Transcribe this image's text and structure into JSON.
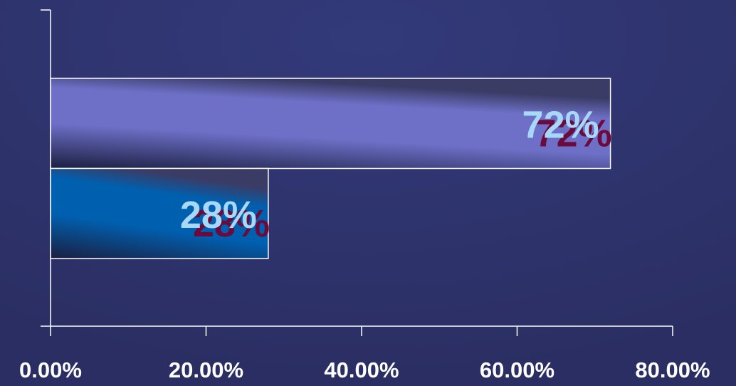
{
  "chart_data": {
    "type": "bar",
    "orientation": "horizontal",
    "categories": [
      null,
      null
    ],
    "values": [
      72,
      28
    ],
    "value_labels": [
      "72%",
      "28%"
    ],
    "colors": [
      "#6e70c8",
      "#0060b0"
    ],
    "xlim": [
      0,
      80
    ],
    "xticks": [
      {
        "value": 0,
        "label": "0.00%"
      },
      {
        "value": 20,
        "label": "20.00%"
      },
      {
        "value": 40,
        "label": "40.00%"
      },
      {
        "value": 60,
        "label": "60.00%"
      },
      {
        "value": 80,
        "label": "80.00%"
      }
    ]
  }
}
